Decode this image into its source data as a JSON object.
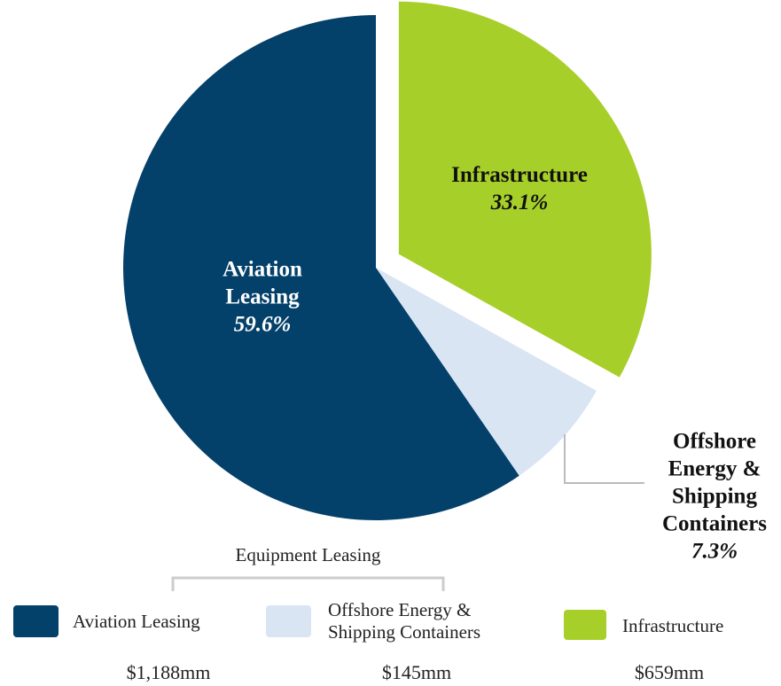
{
  "chart_data": {
    "type": "pie",
    "categories": [
      "Aviation Leasing",
      "Offshore Energy & Shipping Containers",
      "Infrastructure"
    ],
    "values": [
      59.6,
      7.3,
      33.1
    ],
    "value_labels": [
      "59.6%",
      "7.3%",
      "33.1%"
    ],
    "colors": [
      "#03406a",
      "#dae5f4",
      "#a7cf2a"
    ],
    "explode": [
      false,
      false,
      true
    ],
    "amounts": [
      "$1,188mm",
      "$145mm",
      "$659mm"
    ],
    "group_label": "Equipment Leasing"
  }
}
